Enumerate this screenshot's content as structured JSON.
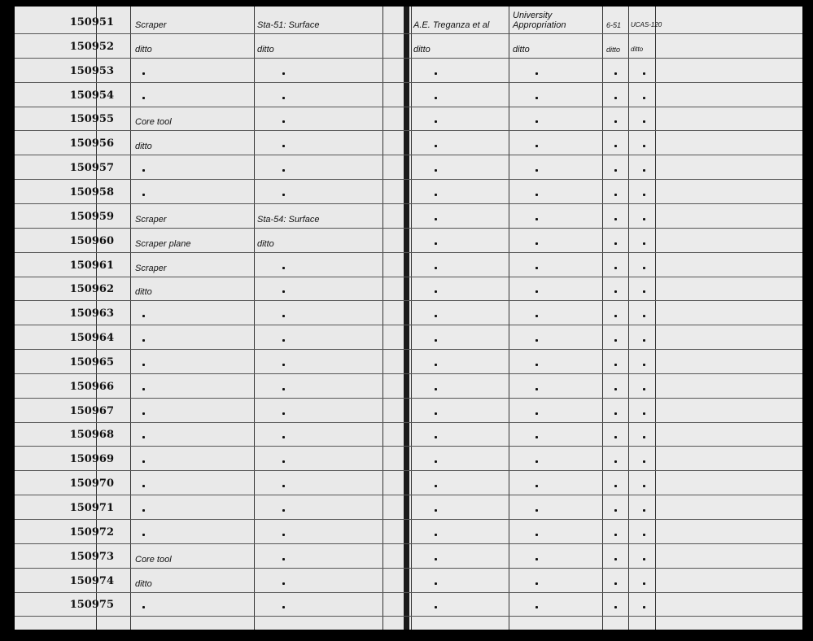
{
  "ledger": {
    "rows": [
      {
        "number": "150951",
        "description": "Scraper",
        "locality": "Sta-51: Surface",
        "collector": "A.E. Treganza et al",
        "source": "University Appropriation",
        "date": "6-51",
        "accession": "UCAS-120"
      },
      {
        "number": "150952",
        "description": "ditto",
        "locality": "ditto",
        "collector": "ditto",
        "source": "ditto",
        "date": "ditto",
        "accession": "ditto"
      },
      {
        "number": "150953"
      },
      {
        "number": "150954"
      },
      {
        "number": "150955",
        "description": "Core tool"
      },
      {
        "number": "150956",
        "description": "ditto"
      },
      {
        "number": "150957"
      },
      {
        "number": "150958"
      },
      {
        "number": "150959",
        "description": "Scraper",
        "locality": "Sta-54: Surface"
      },
      {
        "number": "150960",
        "description": "Scraper plane",
        "locality": "ditto"
      },
      {
        "number": "150961",
        "description": "Scraper"
      },
      {
        "number": "150962",
        "description": "ditto"
      },
      {
        "number": "150963"
      },
      {
        "number": "150964"
      },
      {
        "number": "150965"
      },
      {
        "number": "150966"
      },
      {
        "number": "150967"
      },
      {
        "number": "150968"
      },
      {
        "number": "150969"
      },
      {
        "number": "150970"
      },
      {
        "number": "150971"
      },
      {
        "number": "150972"
      },
      {
        "number": "150973",
        "description": "Core tool"
      },
      {
        "number": "150974",
        "description": "ditto"
      },
      {
        "number": "150975"
      }
    ]
  }
}
